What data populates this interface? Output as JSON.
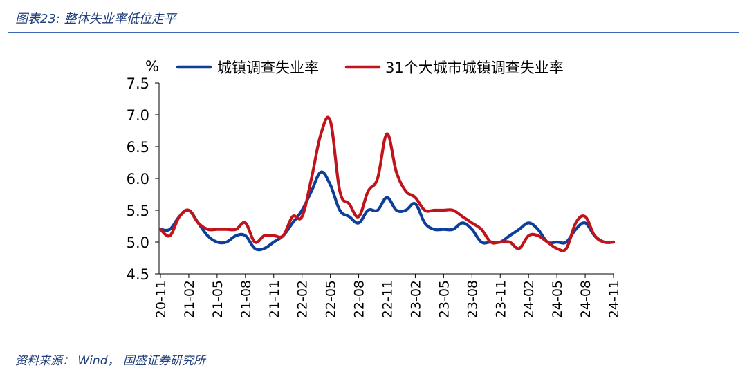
{
  "figure": {
    "title": "图表23:  整体失业率低位走平",
    "source": "资料来源：  Wind，  国盛证券研究所"
  },
  "chart_data": {
    "type": "line",
    "ylabel": "%",
    "ylim": [
      4.5,
      7.5
    ],
    "yticks": [
      "7.5",
      "7.0",
      "6.5",
      "6.0",
      "5.5",
      "5.0",
      "4.5"
    ],
    "ytick_values": [
      7.5,
      7.0,
      6.5,
      6.0,
      5.5,
      5.0,
      4.5
    ],
    "xtick_labels": [
      "20-11",
      "21-02",
      "21-05",
      "21-08",
      "21-11",
      "22-02",
      "22-05",
      "22-08",
      "22-11",
      "23-02",
      "23-05",
      "23-08",
      "23-11",
      "24-02",
      "24-05",
      "24-08",
      "24-11"
    ],
    "x": [
      "20-11",
      "20-12",
      "21-01",
      "21-02",
      "21-03",
      "21-04",
      "21-05",
      "21-06",
      "21-07",
      "21-08",
      "21-09",
      "21-10",
      "21-11",
      "21-12",
      "22-01",
      "22-02",
      "22-03",
      "22-04",
      "22-05",
      "22-06",
      "22-07",
      "22-08",
      "22-09",
      "22-10",
      "22-11",
      "22-12",
      "23-01",
      "23-02",
      "23-03",
      "23-04",
      "23-05",
      "23-06",
      "23-07",
      "23-08",
      "23-09",
      "23-10",
      "23-11",
      "23-12",
      "24-01",
      "24-02",
      "24-03",
      "24-04",
      "24-05",
      "24-06",
      "24-07",
      "24-08",
      "24-09",
      "24-10",
      "24-11"
    ],
    "legend_position": "top",
    "grid": false,
    "series": [
      {
        "name": "城镇调查失业率",
        "color": "#0d3f9a",
        "values": [
          5.2,
          5.2,
          5.4,
          5.5,
          5.3,
          5.1,
          5.0,
          5.0,
          5.1,
          5.1,
          4.9,
          4.9,
          5.0,
          5.1,
          5.3,
          5.5,
          5.8,
          6.1,
          5.9,
          5.5,
          5.4,
          5.3,
          5.5,
          5.5,
          5.7,
          5.5,
          5.5,
          5.6,
          5.3,
          5.2,
          5.2,
          5.2,
          5.3,
          5.2,
          5.0,
          5.0,
          5.0,
          5.1,
          5.2,
          5.3,
          5.2,
          5.0,
          5.0,
          5.0,
          5.2,
          5.3,
          5.1,
          5.0,
          5.0
        ]
      },
      {
        "name": "31个大城市城镇调查失业率",
        "color": "#c0141c",
        "values": [
          5.2,
          5.1,
          5.4,
          5.5,
          5.3,
          5.2,
          5.2,
          5.2,
          5.2,
          5.3,
          5.0,
          5.1,
          5.1,
          5.1,
          5.4,
          5.4,
          6.0,
          6.7,
          6.9,
          5.8,
          5.6,
          5.4,
          5.8,
          6.0,
          6.7,
          6.1,
          5.8,
          5.7,
          5.5,
          5.5,
          5.5,
          5.5,
          5.4,
          5.3,
          5.2,
          5.0,
          5.0,
          5.0,
          4.9,
          5.1,
          5.1,
          5.0,
          4.9,
          4.9,
          5.3,
          5.4,
          5.1,
          5.0,
          5.0
        ]
      }
    ]
  }
}
